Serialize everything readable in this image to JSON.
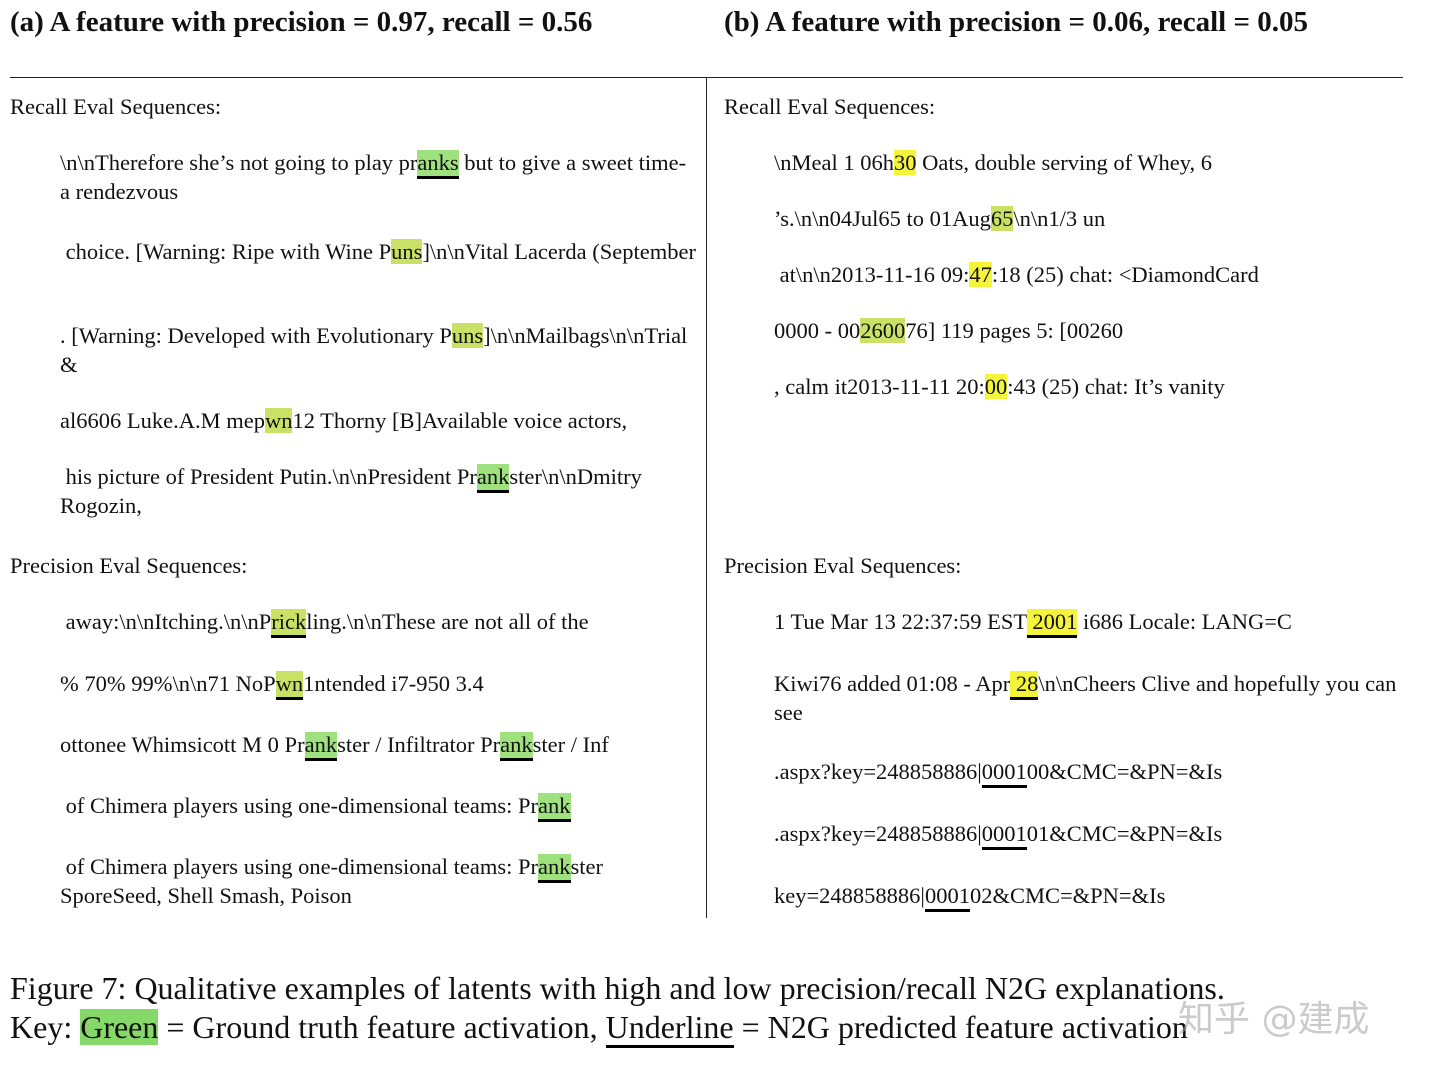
{
  "panel_a": {
    "title": "(a) A feature with precision = 0.97, recall = 0.56",
    "recall_label": "Recall Eval Sequences:",
    "precision_label": "Precision Eval Sequences:",
    "recall_sequences": [
      [
        "\\n\\nTherefore she’s not going to play pr",
        "anks",
        " but to give a sweet time-a rendezvous"
      ],
      [
        " choice. [Warning: Ripe with Wine P",
        "uns",
        "]\\n\\nVital Lacerda (September"
      ],
      [
        ". [Warning: Developed with Evolutionary P",
        "uns",
        "]\\n\\nMailbags\\n\\nTrial &"
      ],
      [
        "al6606 Luke.A.M mep",
        "wn",
        "12 Thorny [B]Available voice actors,"
      ],
      [
        " his picture of President Putin.\\n\\nPresident Pr",
        "ank",
        "ster\\n\\nDmitry Rogozin,"
      ]
    ],
    "precision_sequences": [
      [
        " away:\\n\\nItching.\\n\\nP",
        "rick",
        "ling.\\n\\nThese are not all of the"
      ],
      [
        "% 70% 99%\\n\\n71 NoP",
        "wn",
        "1ntended i7-950 3.4"
      ],
      [
        "ottonee Whimsicott M 0 Pr",
        "ank",
        "ster / Infiltrator Pr",
        "ank",
        "ster / Inf"
      ],
      [
        " of Chimera players using one-dimensional teams: Pr",
        "ank"
      ],
      [
        " of Chimera players using one-dimensional teams: Pr",
        "ank",
        "ster SporeSeed, Shell Smash, Poison"
      ]
    ]
  },
  "panel_b": {
    "title": "(b) A feature with precision = 0.06, recall = 0.05",
    "recall_label": "Recall Eval Sequences:",
    "precision_label": "Precision Eval Sequences:",
    "recall_sequences": [
      [
        "\\nMeal 1 06h",
        "30",
        " Oats, double serving of Whey, 6"
      ],
      [
        "’s.\\n\\n04Jul65 to 01Aug",
        "65",
        "\\n\\n1/3 un"
      ],
      [
        " at\\n\\n2013-11-16 09:",
        "47",
        ":18 (25) chat: <DiamondCard"
      ],
      [
        "0000 - 00",
        "2600",
        "76] 119 pages 5: [00260"
      ],
      [
        ", calm it2013-11-11 20:",
        "00",
        ":43 (25) chat: It’s vanity"
      ]
    ],
    "precision_sequences": [
      [
        "1 Tue Mar 13 22:37:59 EST",
        " 2001",
        " i686 Locale: LANG=C"
      ],
      [
        "Kiwi76 added 01:08 - Apr",
        " 28",
        "\\n\\nCheers Clive and hopefully you can see"
      ],
      [
        ".aspx?key=248858886|",
        "0001",
        "00&CMC=&PN=&Is"
      ],
      [
        ".aspx?key=248858886|",
        "0001",
        "01&CMC=&PN=&Is"
      ],
      [
        "key=248858886|",
        "0001",
        "02&CMC=&PN=&Is"
      ]
    ]
  },
  "caption": {
    "line1": "Figure 7: Qualitative examples of latents with high and low precision/recall N2G explanations.",
    "key_prefix": "Key: ",
    "key_green": "Green",
    "key_mid": " = Ground truth feature activation, ",
    "key_underline": "Underline",
    "key_end": " = N2G predicted feature activation"
  },
  "watermark": "知乎 @建成",
  "colors": {
    "green_highlight": "#9fe07f",
    "yellow_highlight": "#f4f53a",
    "olive_highlight": "#c9e265"
  }
}
